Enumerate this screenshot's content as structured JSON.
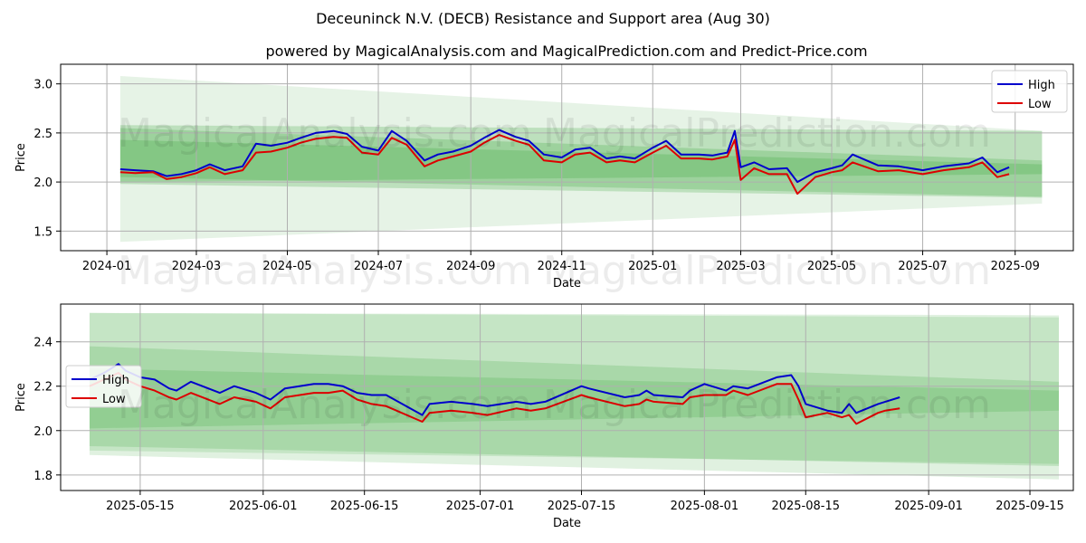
{
  "title": "Deceuninck N.V. (DECB) Resistance and Support area (Aug 30)",
  "subtitle": "powered by MagicalAnalysis.com and MagicalPrediction.com and Predict-Price.com",
  "watermarks": [
    "MagicalAnalysis.com",
    "MagicalPrediction.com"
  ],
  "colors": {
    "high": "#0000cc",
    "low": "#dd0000",
    "band": "#2e9e2e",
    "grid": "#b0b0b0"
  },
  "chart_data": [
    {
      "type": "line",
      "xlabel": "Date",
      "ylabel": "Price",
      "grid": true,
      "legend_position": "top-right",
      "x_start": "2023-12-01",
      "xlim": [
        "2023-12-01",
        "2025-10-10"
      ],
      "ylim": [
        1.3,
        3.2
      ],
      "x_ticks": [
        "2024-01",
        "2024-03",
        "2024-05",
        "2024-07",
        "2024-09",
        "2024-11",
        "2025-01",
        "2025-03",
        "2025-05",
        "2025-07",
        "2025-09"
      ],
      "x_tick_dates": [
        "2024-01-01",
        "2024-03-01",
        "2024-05-01",
        "2024-07-01",
        "2024-09-01",
        "2024-11-01",
        "2025-01-01",
        "2025-03-01",
        "2025-05-01",
        "2025-07-01",
        "2025-09-01"
      ],
      "y_ticks": [
        1.5,
        2.0,
        2.5,
        3.0
      ],
      "y_tick_labels": [
        "1.5",
        "2.0",
        "2.5",
        "3.0"
      ],
      "bands": [
        {
          "x": [
            "2024-01-10",
            "2025-09-19"
          ],
          "upper": [
            3.08,
            2.52
          ],
          "lower": [
            1.39,
            1.78
          ],
          "opacity": 0.12
        },
        {
          "x": [
            "2024-01-10",
            "2025-09-19"
          ],
          "upper": [
            2.58,
            2.52
          ],
          "lower": [
            2.05,
            1.85
          ],
          "opacity": 0.22
        },
        {
          "x": [
            "2024-01-10",
            "2025-09-19"
          ],
          "upper": [
            2.55,
            2.22
          ],
          "lower": [
            1.98,
            1.84
          ],
          "opacity": 0.22
        },
        {
          "x": [
            "2024-01-10",
            "2025-09-19"
          ],
          "upper": [
            2.43,
            2.18
          ],
          "lower": [
            2.0,
            2.08
          ],
          "opacity": 0.22
        }
      ],
      "series": [
        {
          "name": "High",
          "x": [
            "2024-01-10",
            "2024-01-20",
            "2024-02-01",
            "2024-02-10",
            "2024-02-20",
            "2024-03-01",
            "2024-03-10",
            "2024-03-20",
            "2024-04-01",
            "2024-04-10",
            "2024-04-20",
            "2024-05-01",
            "2024-05-10",
            "2024-05-20",
            "2024-06-01",
            "2024-06-10",
            "2024-06-20",
            "2024-07-01",
            "2024-07-10",
            "2024-07-20",
            "2024-08-01",
            "2024-08-10",
            "2024-08-20",
            "2024-09-01",
            "2024-09-10",
            "2024-09-20",
            "2024-10-01",
            "2024-10-10",
            "2024-10-20",
            "2024-11-01",
            "2024-11-10",
            "2024-11-20",
            "2024-12-01",
            "2024-12-10",
            "2024-12-20",
            "2025-01-01",
            "2025-01-10",
            "2025-01-20",
            "2025-02-01",
            "2025-02-10",
            "2025-02-20",
            "2025-02-25",
            "2025-03-01",
            "2025-03-10",
            "2025-03-20",
            "2025-04-01",
            "2025-04-08",
            "2025-04-20",
            "2025-05-01",
            "2025-05-08",
            "2025-05-15",
            "2025-06-01",
            "2025-06-15",
            "2025-07-01",
            "2025-07-15",
            "2025-08-01",
            "2025-08-10",
            "2025-08-20",
            "2025-08-28"
          ],
          "values": [
            2.13,
            2.12,
            2.11,
            2.06,
            2.08,
            2.12,
            2.18,
            2.12,
            2.16,
            2.39,
            2.37,
            2.4,
            2.45,
            2.5,
            2.52,
            2.49,
            2.36,
            2.32,
            2.52,
            2.42,
            2.22,
            2.28,
            2.31,
            2.37,
            2.45,
            2.53,
            2.46,
            2.42,
            2.28,
            2.25,
            2.33,
            2.35,
            2.24,
            2.26,
            2.24,
            2.35,
            2.42,
            2.28,
            2.28,
            2.27,
            2.3,
            2.52,
            2.15,
            2.2,
            2.13,
            2.14,
            2.0,
            2.1,
            2.14,
            2.17,
            2.28,
            2.17,
            2.16,
            2.12,
            2.16,
            2.19,
            2.25,
            2.1,
            2.15
          ],
          "color": "#0000cc"
        },
        {
          "name": "Low",
          "x": [
            "2024-01-10",
            "2024-01-20",
            "2024-02-01",
            "2024-02-10",
            "2024-02-20",
            "2024-03-01",
            "2024-03-10",
            "2024-03-20",
            "2024-04-01",
            "2024-04-10",
            "2024-04-20",
            "2024-05-01",
            "2024-05-10",
            "2024-05-20",
            "2024-06-01",
            "2024-06-10",
            "2024-06-20",
            "2024-07-01",
            "2024-07-10",
            "2024-07-20",
            "2024-08-01",
            "2024-08-10",
            "2024-08-20",
            "2024-09-01",
            "2024-09-10",
            "2024-09-20",
            "2024-10-01",
            "2024-10-10",
            "2024-10-20",
            "2024-11-01",
            "2024-11-10",
            "2024-11-20",
            "2024-12-01",
            "2024-12-10",
            "2024-12-20",
            "2025-01-01",
            "2025-01-10",
            "2025-01-20",
            "2025-02-01",
            "2025-02-10",
            "2025-02-20",
            "2025-02-25",
            "2025-03-01",
            "2025-03-10",
            "2025-03-20",
            "2025-04-01",
            "2025-04-08",
            "2025-04-20",
            "2025-05-01",
            "2025-05-08",
            "2025-05-15",
            "2025-06-01",
            "2025-06-15",
            "2025-07-01",
            "2025-07-15",
            "2025-08-01",
            "2025-08-10",
            "2025-08-20",
            "2025-08-28"
          ],
          "values": [
            2.1,
            2.09,
            2.1,
            2.03,
            2.05,
            2.09,
            2.15,
            2.08,
            2.12,
            2.3,
            2.31,
            2.35,
            2.4,
            2.44,
            2.46,
            2.45,
            2.3,
            2.28,
            2.45,
            2.38,
            2.16,
            2.22,
            2.26,
            2.31,
            2.4,
            2.48,
            2.42,
            2.38,
            2.22,
            2.2,
            2.28,
            2.3,
            2.2,
            2.22,
            2.2,
            2.3,
            2.37,
            2.24,
            2.24,
            2.23,
            2.26,
            2.43,
            2.02,
            2.14,
            2.08,
            2.08,
            1.88,
            2.05,
            2.1,
            2.12,
            2.2,
            2.11,
            2.12,
            2.08,
            2.12,
            2.15,
            2.2,
            2.05,
            2.08
          ],
          "color": "#dd0000"
        }
      ]
    },
    {
      "type": "line",
      "xlabel": "Date",
      "ylabel": "Price",
      "grid": true,
      "legend_position": "middle-left",
      "x_start": "2025-05-01",
      "xlim": [
        "2025-05-04",
        "2025-09-21"
      ],
      "ylim": [
        1.73,
        2.57
      ],
      "x_ticks": [
        "2025-05-15",
        "2025-06-01",
        "2025-06-15",
        "2025-07-01",
        "2025-07-15",
        "2025-08-01",
        "2025-08-15",
        "2025-09-01",
        "2025-09-15"
      ],
      "x_tick_dates": [
        "2025-05-15",
        "2025-06-01",
        "2025-06-15",
        "2025-07-01",
        "2025-07-15",
        "2025-08-01",
        "2025-08-15",
        "2025-09-01",
        "2025-09-15"
      ],
      "y_ticks": [
        1.8,
        2.0,
        2.2,
        2.4
      ],
      "y_tick_labels": [
        "1.8",
        "2.0",
        "2.2",
        "2.4"
      ],
      "bands": [
        {
          "x": [
            "2025-05-08",
            "2025-09-19"
          ],
          "upper": [
            2.53,
            2.52
          ],
          "lower": [
            1.89,
            1.78
          ],
          "opacity": 0.15
        },
        {
          "x": [
            "2025-05-08",
            "2025-09-19"
          ],
          "upper": [
            2.53,
            2.51
          ],
          "lower": [
            1.91,
            1.85
          ],
          "opacity": 0.15
        },
        {
          "x": [
            "2025-05-08",
            "2025-09-19"
          ],
          "upper": [
            2.38,
            2.22
          ],
          "lower": [
            1.93,
            1.84
          ],
          "opacity": 0.18
        },
        {
          "x": [
            "2025-05-08",
            "2025-09-19"
          ],
          "upper": [
            2.28,
            2.18
          ],
          "lower": [
            2.01,
            2.09
          ],
          "opacity": 0.18
        }
      ],
      "series": [
        {
          "name": "High",
          "x": [
            "2025-05-08",
            "2025-05-10",
            "2025-05-12",
            "2025-05-13",
            "2025-05-15",
            "2025-05-17",
            "2025-05-19",
            "2025-05-20",
            "2025-05-22",
            "2025-05-26",
            "2025-05-28",
            "2025-05-31",
            "2025-06-02",
            "2025-06-04",
            "2025-06-08",
            "2025-06-10",
            "2025-06-12",
            "2025-06-14",
            "2025-06-16",
            "2025-06-18",
            "2025-06-23",
            "2025-06-24",
            "2025-06-27",
            "2025-06-30",
            "2025-07-02",
            "2025-07-06",
            "2025-07-08",
            "2025-07-10",
            "2025-07-15",
            "2025-07-16",
            "2025-07-21",
            "2025-07-23",
            "2025-07-24",
            "2025-07-25",
            "2025-07-29",
            "2025-07-30",
            "2025-08-01",
            "2025-08-04",
            "2025-08-05",
            "2025-08-07",
            "2025-08-11",
            "2025-08-13",
            "2025-08-14",
            "2025-08-15",
            "2025-08-18",
            "2025-08-20",
            "2025-08-21",
            "2025-08-22",
            "2025-08-25",
            "2025-08-26",
            "2025-08-28"
          ],
          "values": [
            2.23,
            2.26,
            2.3,
            2.27,
            2.24,
            2.23,
            2.19,
            2.18,
            2.22,
            2.17,
            2.2,
            2.17,
            2.14,
            2.19,
            2.21,
            2.21,
            2.2,
            2.17,
            2.16,
            2.16,
            2.07,
            2.12,
            2.13,
            2.12,
            2.11,
            2.13,
            2.12,
            2.13,
            2.2,
            2.19,
            2.15,
            2.16,
            2.18,
            2.16,
            2.15,
            2.18,
            2.21,
            2.18,
            2.2,
            2.19,
            2.24,
            2.25,
            2.2,
            2.12,
            2.09,
            2.08,
            2.12,
            2.08,
            2.12,
            2.13,
            2.15
          ],
          "color": "#0000cc"
        },
        {
          "name": "Low",
          "x": [
            "2025-05-08",
            "2025-05-10",
            "2025-05-12",
            "2025-05-13",
            "2025-05-15",
            "2025-05-17",
            "2025-05-19",
            "2025-05-20",
            "2025-05-22",
            "2025-05-26",
            "2025-05-28",
            "2025-05-31",
            "2025-06-02",
            "2025-06-04",
            "2025-06-08",
            "2025-06-10",
            "2025-06-12",
            "2025-06-14",
            "2025-06-16",
            "2025-06-18",
            "2025-06-23",
            "2025-06-24",
            "2025-06-27",
            "2025-06-30",
            "2025-07-02",
            "2025-07-06",
            "2025-07-08",
            "2025-07-10",
            "2025-07-15",
            "2025-07-16",
            "2025-07-21",
            "2025-07-23",
            "2025-07-24",
            "2025-07-25",
            "2025-07-29",
            "2025-07-30",
            "2025-08-01",
            "2025-08-04",
            "2025-08-05",
            "2025-08-07",
            "2025-08-11",
            "2025-08-13",
            "2025-08-14",
            "2025-08-15",
            "2025-08-18",
            "2025-08-20",
            "2025-08-21",
            "2025-08-22",
            "2025-08-25",
            "2025-08-26",
            "2025-08-28"
          ],
          "values": [
            2.2,
            2.23,
            2.26,
            2.23,
            2.2,
            2.18,
            2.15,
            2.14,
            2.17,
            2.12,
            2.15,
            2.13,
            2.1,
            2.15,
            2.17,
            2.17,
            2.18,
            2.14,
            2.12,
            2.11,
            2.04,
            2.08,
            2.09,
            2.08,
            2.07,
            2.1,
            2.09,
            2.1,
            2.16,
            2.15,
            2.11,
            2.12,
            2.14,
            2.13,
            2.12,
            2.15,
            2.16,
            2.16,
            2.18,
            2.16,
            2.21,
            2.21,
            2.14,
            2.06,
            2.08,
            2.06,
            2.07,
            2.03,
            2.08,
            2.09,
            2.1
          ],
          "color": "#dd0000"
        }
      ]
    }
  ]
}
